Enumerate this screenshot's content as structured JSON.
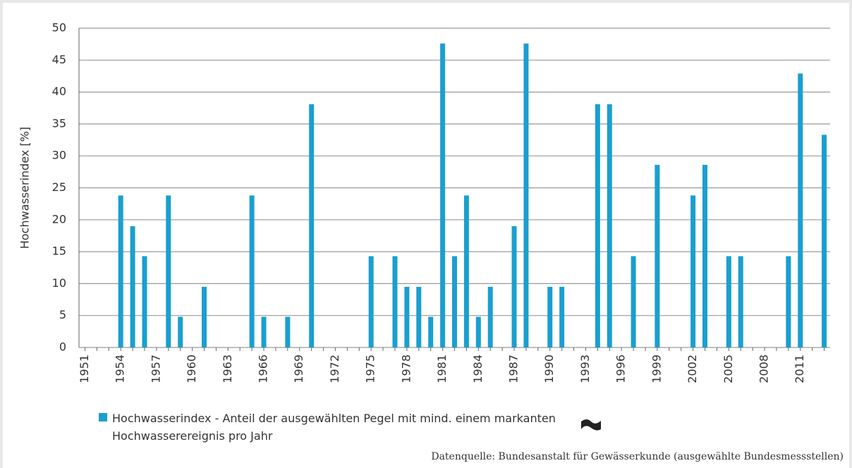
{
  "chart_data": {
    "type": "bar",
    "y_label": "Hochwasserindex [%]",
    "categories": [
      "1951",
      null,
      null,
      "1954",
      null,
      null,
      "1957",
      null,
      null,
      "1960",
      null,
      null,
      "1963",
      null,
      null,
      "1966",
      null,
      null,
      "1969",
      null,
      null,
      "1972",
      null,
      null,
      "1975",
      null,
      null,
      "1978",
      null,
      null,
      "1981",
      null,
      null,
      "1984",
      null,
      null,
      "1987",
      null,
      null,
      "1990",
      null,
      null,
      "1993",
      null,
      null,
      "1996",
      null,
      null,
      "1999",
      null,
      null,
      "2002",
      null,
      null,
      "2005",
      null,
      null,
      "2008",
      null,
      null,
      "2011",
      null,
      null
    ],
    "series": [
      {
        "name": "Hochwasserindex - Anteil der ausgewählten Pegel mit mind. einem markanten Hochwasserereignis pro Jahr",
        "color": "#1a9fd0",
        "values": [
          0,
          0,
          0,
          23.8,
          19,
          14.3,
          0,
          23.8,
          4.8,
          0,
          9.5,
          0,
          0,
          0,
          23.8,
          4.8,
          0,
          4.8,
          0,
          38.1,
          0,
          0,
          0,
          0,
          14.3,
          0,
          14.3,
          9.5,
          9.5,
          4.8,
          47.6,
          14.3,
          23.8,
          4.8,
          9.5,
          0,
          19,
          47.6,
          0,
          9.5,
          9.5,
          0,
          0,
          38.1,
          38.1,
          0,
          14.3,
          0,
          28.6,
          0,
          0,
          23.8,
          28.6,
          0,
          14.3,
          14.3,
          0,
          0,
          0,
          14.3,
          42.9,
          0,
          33.3
        ]
      }
    ],
    "ylim": [
      0,
      50
    ],
    "yticks": [
      0,
      5,
      10,
      15,
      20,
      25,
      30,
      35,
      40,
      45,
      50
    ],
    "grid": true,
    "source": "Datenquelle: Bundesanstalt für Gewässerkunde (ausgewählte Bundesmessstellen)"
  }
}
